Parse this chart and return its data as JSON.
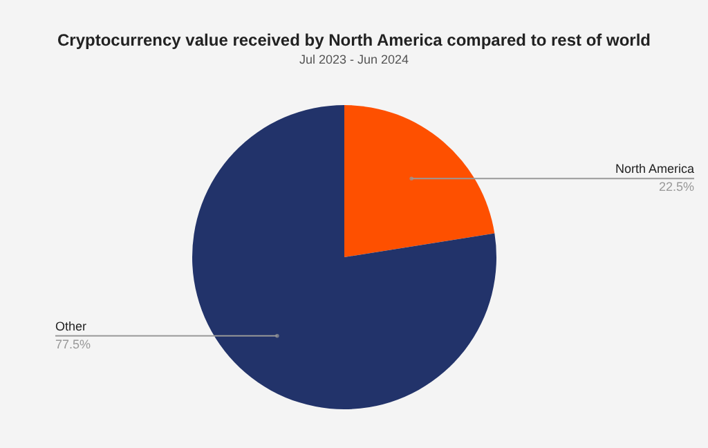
{
  "chart_data": {
    "type": "pie",
    "title": "Cryptocurrency value received by North America compared to rest of world",
    "subtitle": "Jul 2023 - Jun 2024",
    "categories": [
      "North America",
      "Other"
    ],
    "values": [
      22.5,
      77.5
    ],
    "colors": [
      "#fe5000",
      "#22336a"
    ],
    "value_labels": [
      "22.5%",
      "77.5%"
    ]
  }
}
